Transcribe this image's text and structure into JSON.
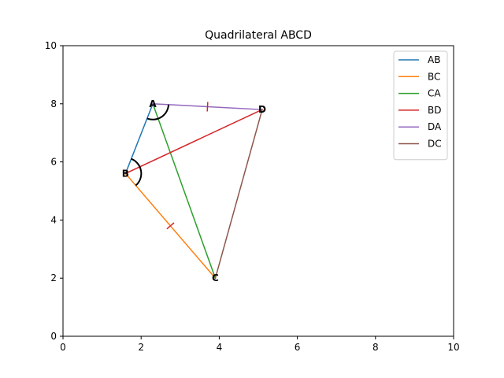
{
  "chart_data": {
    "type": "line",
    "title": "Quadrilateral ABCD",
    "xlabel": "",
    "ylabel": "",
    "xlim": [
      0,
      10
    ],
    "ylim": [
      0,
      10
    ],
    "xticks": [
      0,
      2,
      4,
      6,
      8,
      10
    ],
    "yticks": [
      0,
      2,
      4,
      6,
      8,
      10
    ],
    "grid": false,
    "legend_position": "top-right",
    "points": [
      {
        "label": "A",
        "x": 2.3,
        "y": 8.0
      },
      {
        "label": "B",
        "x": 1.6,
        "y": 5.6
      },
      {
        "label": "C",
        "x": 3.9,
        "y": 2.0
      },
      {
        "label": "D",
        "x": 5.1,
        "y": 7.8
      }
    ],
    "series": [
      {
        "name": "AB",
        "color": "#1f77b4",
        "x": [
          2.3,
          1.6
        ],
        "y": [
          8.0,
          5.6
        ]
      },
      {
        "name": "BC",
        "color": "#ff7f0e",
        "x": [
          1.6,
          3.9
        ],
        "y": [
          5.6,
          2.0
        ]
      },
      {
        "name": "CA",
        "color": "#2ca02c",
        "x": [
          3.9,
          2.3
        ],
        "y": [
          2.0,
          8.0
        ]
      },
      {
        "name": "BD",
        "color": "#d62728",
        "x": [
          1.6,
          5.1
        ],
        "y": [
          5.6,
          7.8
        ]
      },
      {
        "name": "DA",
        "color": "#9467bd",
        "x": [
          5.1,
          2.3
        ],
        "y": [
          7.8,
          8.0
        ]
      },
      {
        "name": "DC",
        "color": "#8c564b",
        "x": [
          5.1,
          3.9
        ],
        "y": [
          7.8,
          2.0
        ]
      }
    ],
    "annotations": {
      "angle_arcs_at": [
        "A",
        "B"
      ],
      "tick_marks_on": [
        "BC",
        "DA"
      ],
      "tick_mark_color": "#d62728"
    }
  }
}
